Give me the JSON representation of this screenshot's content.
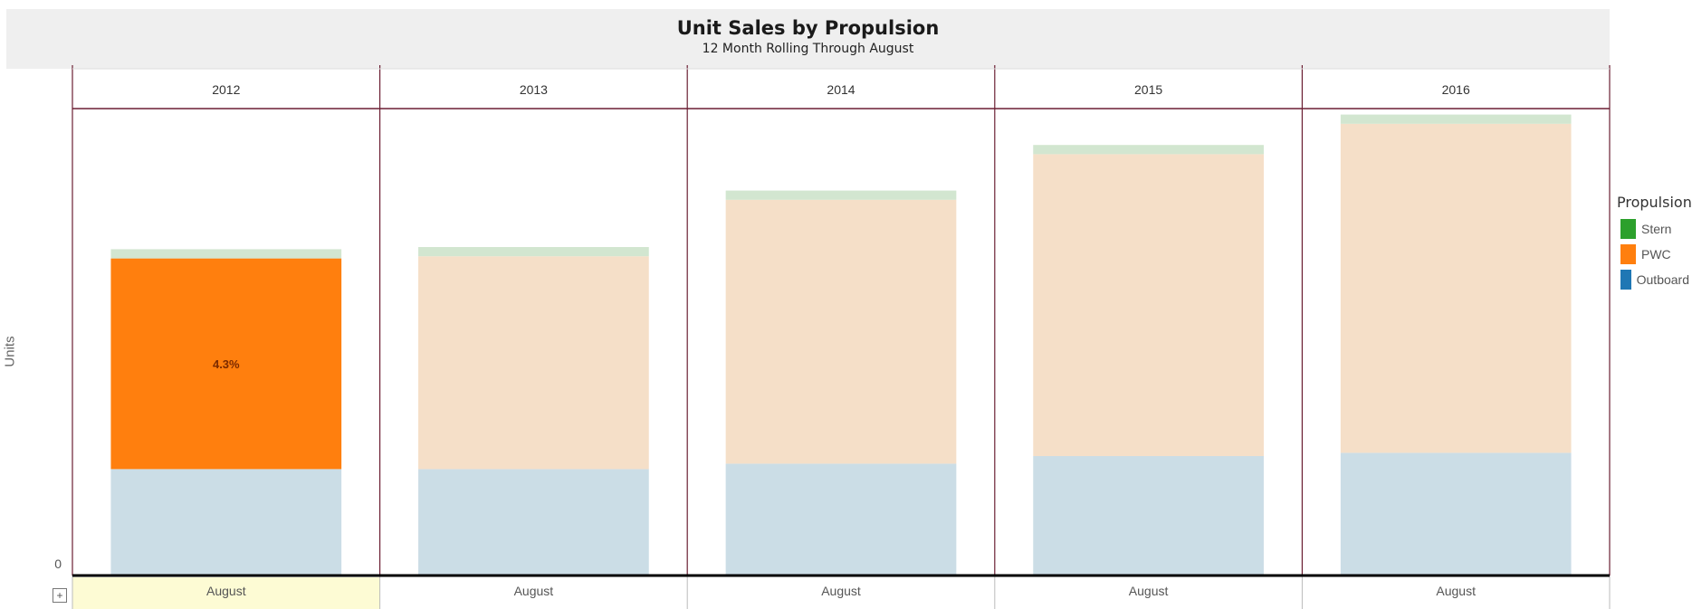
{
  "header": {
    "title": "Unit Sales by Propulsion",
    "subtitle": "12 Month Rolling Through August"
  },
  "legend": {
    "title": "Propulsion",
    "items": [
      {
        "label": "Stern",
        "color": "#2ca02c"
      },
      {
        "label": "PWC",
        "color": "#ff7f0e"
      },
      {
        "label": "Outboard",
        "color": "#1f77b4"
      }
    ]
  },
  "controls": {
    "expand_label": "+"
  },
  "chart_data": {
    "type": "bar",
    "stacked": true,
    "title": "Unit Sales by Propulsion",
    "subtitle": "12 Month Rolling Through August",
    "ylabel": "Units",
    "facets": [
      "2012",
      "2013",
      "2014",
      "2015",
      "2016"
    ],
    "categories": [
      "August",
      "August",
      "August",
      "August",
      "August"
    ],
    "y_ticks_visible": [
      "0"
    ],
    "annotation": {
      "facet": "2012",
      "series": "PWC",
      "text": "4.3%"
    },
    "highlighted_facet": "2012",
    "series": [
      {
        "name": "Outboard",
        "color": "#1f77b4",
        "values": [
          980,
          980,
          1030,
          1100,
          1130
        ]
      },
      {
        "name": "PWC",
        "color": "#ff7f0e",
        "values": [
          1940,
          1960,
          2430,
          2780,
          3030
        ]
      },
      {
        "name": "Stern",
        "color": "#2ca02c",
        "values": [
          85,
          85,
          85,
          85,
          85
        ]
      }
    ],
    "ylim": [
      0,
      4300
    ],
    "grid": false,
    "legend_position": "right"
  }
}
